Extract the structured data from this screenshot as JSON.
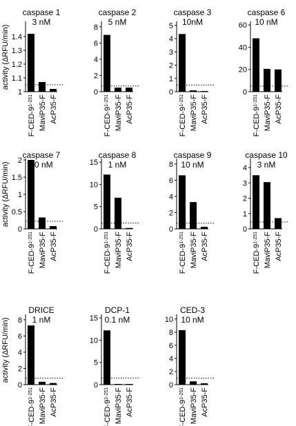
{
  "chart_data": {
    "type": "bar",
    "ylabel": "activity (ΔRFU/min)",
    "categories": [
      "F-CED-9",
      "MaviP35-F",
      "AcP35-F"
    ],
    "category_superscript": "1-251",
    "panels": [
      {
        "title": "caspase 1",
        "subtitle": "3 nM",
        "ylim": [
          1.0,
          1.5
        ],
        "ticks": [
          1.0,
          1.1,
          1.2,
          1.3,
          1.4
        ],
        "values": [
          1.42,
          1.07,
          1.02
        ],
        "baseline": 1.05
      },
      {
        "title": "caspase 2",
        "subtitle": "5 nM",
        "ylim": [
          0,
          8.5
        ],
        "ticks": [
          0,
          2,
          4,
          6,
          8
        ],
        "values": [
          7.0,
          0.5,
          0.5
        ],
        "baseline": 0.7
      },
      {
        "title": "caspase 3",
        "subtitle": "10nM",
        "ylim": [
          0,
          5.2
        ],
        "ticks": [
          0,
          1,
          2,
          3,
          4,
          5
        ],
        "values": [
          4.35,
          0.1,
          0.0
        ],
        "baseline": 0.5
      },
      {
        "title": "caspase 6",
        "subtitle": "10 nM",
        "ylim": [
          0,
          62
        ],
        "ticks": [
          0,
          20,
          40,
          60
        ],
        "values": [
          48,
          20.5,
          20
        ],
        "baseline": 5
      },
      {
        "title": "caspase 7",
        "subtitle": "10 nM",
        "ylim": [
          0,
          2.0
        ],
        "ticks": [
          0.0,
          0.5,
          1.0,
          1.5,
          2.0
        ],
        "values": [
          2.0,
          0.33,
          0.08
        ],
        "baseline": 0.22
      },
      {
        "title": "caspase 8",
        "subtitle": "1 nM",
        "ylim": [
          0,
          15.5
        ],
        "ticks": [
          0,
          5,
          10,
          15
        ],
        "values": [
          12.2,
          7.0,
          0.2
        ],
        "baseline": 1.3
      },
      {
        "title": "caspase 9",
        "subtitle": "10 nM",
        "ylim": [
          0,
          8.5
        ],
        "ticks": [
          0,
          2,
          4,
          6,
          8
        ],
        "values": [
          6.6,
          3.3,
          0.25
        ],
        "baseline": 0.7
      },
      {
        "title": "caspase 10",
        "subtitle": "3 nM",
        "ylim": [
          0,
          4.5
        ],
        "ticks": [
          0,
          1,
          2,
          3,
          4
        ],
        "values": [
          3.5,
          3.05,
          0.7
        ],
        "baseline": 0.45
      },
      {
        "title": "DRICE",
        "subtitle": "1 nM",
        "ylim": [
          0,
          8.5
        ],
        "ticks": [
          0,
          2,
          4,
          6,
          8
        ],
        "values": [
          7.3,
          0.35,
          0.2
        ],
        "baseline": 0.8
      },
      {
        "title": "DCP-1",
        "subtitle": "0.1 nM",
        "ylim": [
          0,
          15.5
        ],
        "ticks": [
          0,
          5,
          10,
          15
        ],
        "values": [
          12.2,
          0.15,
          0.1
        ],
        "baseline": 1.5
      },
      {
        "title": "CED-3",
        "subtitle": "10 nM",
        "ylim": [
          0,
          10.5
        ],
        "ticks": [
          0,
          2,
          4,
          6,
          8,
          10
        ],
        "values": [
          8.3,
          0.5,
          0.2
        ],
        "baseline": 1.0
      }
    ]
  }
}
